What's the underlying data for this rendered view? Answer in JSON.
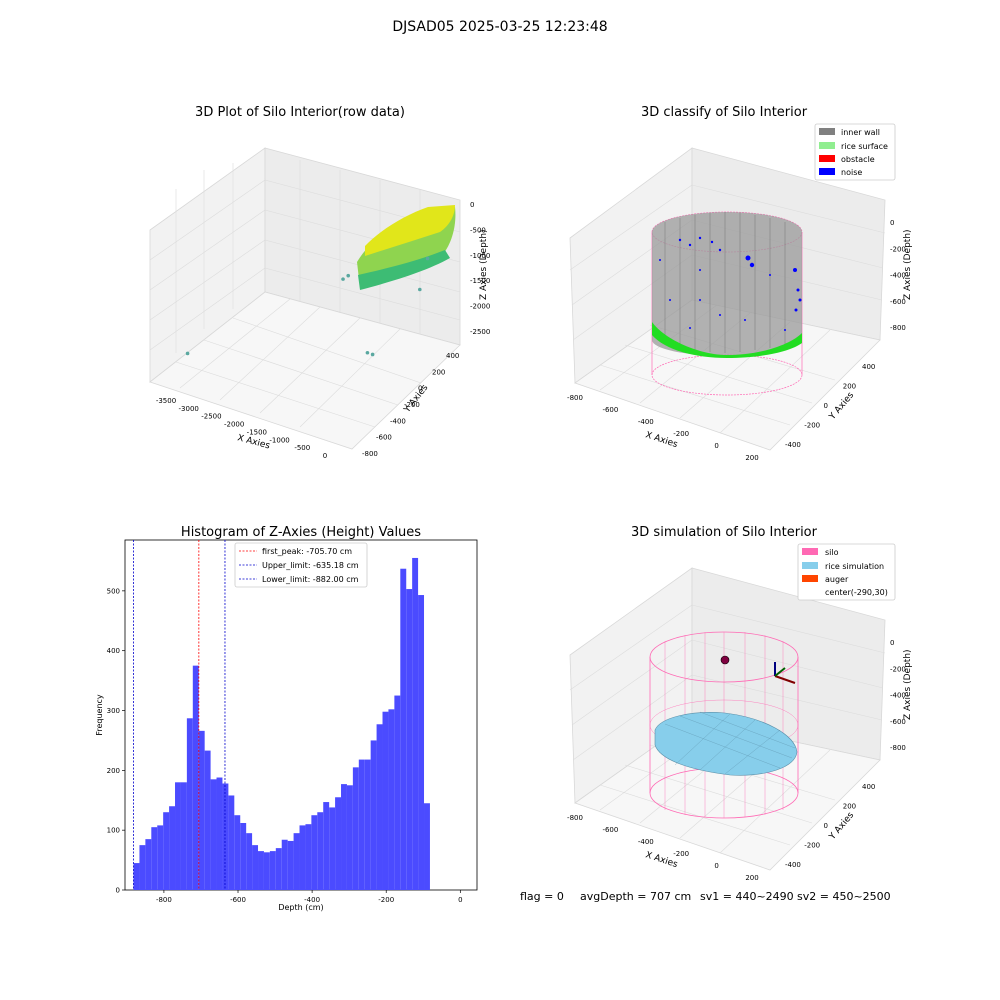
{
  "figure": {
    "suptitle": "DJSAD05 2025-03-25 12:23:48",
    "footer": {
      "flag": "flag = 0",
      "avg_depth": "avgDepth = 707 cm",
      "sv1": "sv1 = 440~2490",
      "sv2": "sv2 = 450~2500"
    }
  },
  "colors": {
    "hist_bar": "#4b4bff",
    "first_peak_line": "#ff0000",
    "limit_line": "#0000cc",
    "inner_wall": "#808080",
    "rice_surface": "#90ee90",
    "rice_surface_points": "#22dd22",
    "obstacle": "#ff0000",
    "noise": "#0000ff",
    "silo": "#ff69b4",
    "rice_simulation": "#87ceeb",
    "auger": "#ff4500"
  },
  "chart_data": [
    {
      "type": "scatter3d",
      "title": "3D Plot of Silo Interior(row data)",
      "xlabel": "X Axies",
      "ylabel": "Y Axies",
      "zlabel": "Z Axies (Depth)",
      "x_ticks": [
        "-3500",
        "-3000",
        "-2500",
        "-2000",
        "-1500",
        "-1000",
        "-500",
        "0"
      ],
      "y_ticks": [
        "-800",
        "-600",
        "-400",
        "-200",
        "0",
        "200",
        "400"
      ],
      "z_ticks": [
        "0",
        "-500",
        "-1000",
        "-1500",
        "-2000",
        "-2500"
      ],
      "xlim": [
        -3700,
        200
      ],
      "ylim": [
        -850,
        500
      ],
      "zlim": [
        -2800,
        100
      ],
      "point_cloud": {
        "x_range": [
          -450,
          100
        ],
        "y_range": [
          -450,
          450
        ],
        "z_range": [
          -900,
          -250
        ],
        "color_map": "viridis"
      },
      "outliers": [
        {
          "x": -3550,
          "y": -500,
          "z": -2650
        },
        {
          "x": -1700,
          "y": 200,
          "z": -1500
        },
        {
          "x": -1600,
          "y": 200,
          "z": -1400
        },
        {
          "x": -900,
          "y": 0,
          "z": -2400
        },
        {
          "x": -800,
          "y": 0,
          "z": -2400
        },
        {
          "x": -300,
          "y": 250,
          "z": -1300
        },
        {
          "x": -150,
          "y": 250,
          "z": -650
        }
      ]
    },
    {
      "type": "scatter3d",
      "title": "3D classify of Silo Interior",
      "xlabel": "X Axies",
      "ylabel": "Y Axies",
      "zlabel": "Z Axies (Depth)",
      "x_ticks": [
        "-800",
        "-600",
        "-400",
        "-200",
        "0",
        "200"
      ],
      "y_ticks": [
        "-400",
        "-200",
        "0",
        "200",
        "400"
      ],
      "z_ticks": [
        "0",
        "-200",
        "-400",
        "-600",
        "-800"
      ],
      "xlim": [
        -900,
        250
      ],
      "ylim": [
        -500,
        500
      ],
      "zlim": [
        -1000,
        120
      ],
      "legend": [
        "inner wall",
        "rice surface",
        "obstacle",
        "noise"
      ],
      "legend_loc": "upper right"
    },
    {
      "type": "bar",
      "title": "Histogram of Z-Axies (Height) Values",
      "xlabel": "Depth (cm)",
      "ylabel": "Frequency",
      "x_ticks": [
        -800,
        -600,
        -400,
        -200,
        0
      ],
      "y_ticks": [
        0,
        100,
        200,
        300,
        400,
        500
      ],
      "xlim": [
        -905,
        45
      ],
      "ylim": [
        0,
        585
      ],
      "bin_start": -882,
      "bin_width": 16,
      "counts": [
        45,
        75,
        85,
        105,
        108,
        130,
        140,
        180,
        180,
        287,
        375,
        266,
        233,
        185,
        188,
        178,
        158,
        125,
        112,
        95,
        75,
        65,
        63,
        65,
        70,
        84,
        82,
        95,
        108,
        110,
        125,
        130,
        147,
        138,
        155,
        177,
        175,
        205,
        218,
        218,
        250,
        277,
        298,
        302,
        325,
        537,
        503,
        555,
        493,
        145
      ],
      "lines": [
        {
          "name": "first_peak: -705.70 cm",
          "x": -705.7,
          "style": "first_peak"
        },
        {
          "name": "Upper_limit: -635.18 cm",
          "x": -635.18,
          "style": "limit"
        },
        {
          "name": "Lower_limit: -882.00 cm",
          "x": -882.0,
          "style": "limit"
        }
      ],
      "legend_loc": "upper center"
    },
    {
      "type": "surface3d",
      "title": "3D simulation of Silo Interior",
      "xlabel": "X Axies",
      "ylabel": "Y Axies",
      "zlabel": "Z Axies (Depth)",
      "x_ticks": [
        "-800",
        "-600",
        "-400",
        "-200",
        "0",
        "200"
      ],
      "y_ticks": [
        "-400",
        "-200",
        "0",
        "200",
        "400"
      ],
      "z_ticks": [
        "0",
        "-200",
        "-400",
        "-600",
        "-800"
      ],
      "xlim": [
        -900,
        250
      ],
      "ylim": [
        -500,
        500
      ],
      "zlim": [
        -1000,
        120
      ],
      "legend": [
        "silo",
        "rice simulation",
        "auger",
        "center(-290,30)"
      ],
      "legend_loc": "upper right"
    }
  ]
}
